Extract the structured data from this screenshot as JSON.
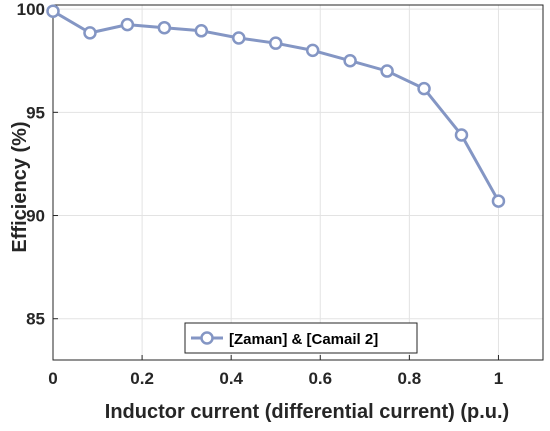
{
  "chart_data": {
    "type": "line",
    "title": "",
    "xlabel": "Inductor current (differential current) (p.u.)",
    "ylabel": "Efficiency (%)",
    "xlim": [
      0,
      1.1
    ],
    "ylim": [
      83,
      100.2
    ],
    "xticks": [
      0,
      0.2,
      0.4,
      0.6,
      0.8,
      1
    ],
    "xtick_labels": [
      "0",
      "0.2",
      "0.4",
      "0.6",
      "0.8",
      "1"
    ],
    "yticks": [
      85,
      90,
      95,
      100
    ],
    "ytick_labels": [
      "85",
      "90",
      "95",
      "100"
    ],
    "grid": true,
    "legend_position": "bottom-center",
    "series": [
      {
        "name": "[Zaman] & [Camail 2]",
        "color": "#8496c4",
        "marker": "circle",
        "x": [
          0,
          0.083,
          0.167,
          0.25,
          0.333,
          0.417,
          0.5,
          0.583,
          0.667,
          0.75,
          0.833,
          0.917,
          1.0
        ],
        "y": [
          99.9,
          98.85,
          99.25,
          99.1,
          98.95,
          98.6,
          98.35,
          98.0,
          97.5,
          97.0,
          96.15,
          93.9,
          90.7
        ]
      }
    ]
  }
}
